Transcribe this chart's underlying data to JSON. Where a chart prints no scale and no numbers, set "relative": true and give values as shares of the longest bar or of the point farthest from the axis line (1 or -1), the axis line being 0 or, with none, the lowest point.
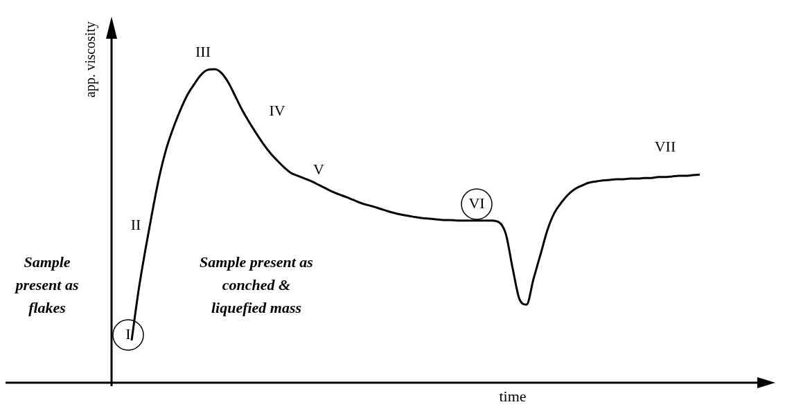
{
  "chart_data": {
    "type": "line",
    "relative": true,
    "xlabel": "time",
    "ylabel": "app. viscosity",
    "annotations": [
      "I",
      "II",
      "III",
      "IV",
      "V",
      "VI",
      "VII",
      "Sample\npresent as\nflakes",
      "Sample present as\nconched &\nliquefied mass"
    ],
    "categories": [
      null,
      null,
      null,
      null,
      null,
      null,
      null,
      null,
      null,
      null,
      null,
      null,
      null,
      null,
      null,
      null,
      null,
      null,
      null,
      null,
      null,
      null,
      null,
      null,
      null,
      null,
      null,
      null,
      null,
      null,
      null,
      null,
      null,
      null,
      null,
      null,
      null,
      null,
      null,
      null,
      null,
      null,
      null,
      null,
      null,
      null,
      null,
      null,
      null,
      null,
      null,
      null,
      null,
      null,
      null,
      null,
      null,
      null,
      null,
      null,
      null,
      null,
      null,
      null,
      null,
      null,
      null,
      null,
      null,
      null,
      null,
      null,
      null,
      null,
      null,
      null,
      null,
      null,
      null,
      null,
      null,
      null,
      null
    ],
    "series": [
      {
        "color": "#000000",
        "values": [
          0.135,
          0.294,
          0.426,
          0.547,
          0.658,
          0.746,
          0.812,
          0.868,
          0.916,
          0.951,
          0.982,
          0.998,
          1.0,
          0.987,
          0.956,
          0.912,
          0.868,
          0.83,
          0.795,
          0.762,
          0.733,
          0.709,
          0.687,
          0.669,
          0.66,
          0.651,
          0.642,
          0.631,
          0.62,
          0.609,
          0.6,
          0.592,
          0.583,
          0.574,
          0.567,
          0.561,
          0.554,
          0.547,
          0.541,
          0.536,
          0.532,
          0.528,
          0.525,
          0.523,
          0.521,
          0.519,
          0.519,
          0.517,
          0.517,
          0.517,
          0.517,
          0.517,
          0.517,
          0.512,
          0.475,
          0.364,
          0.265,
          0.249,
          0.331,
          0.408,
          0.486,
          0.541,
          0.574,
          0.6,
          0.618,
          0.629,
          0.638,
          0.642,
          0.645,
          0.647,
          0.649,
          0.649,
          0.651,
          0.651,
          0.653,
          0.653,
          0.656,
          0.656,
          0.658,
          0.66,
          0.66,
          0.662,
          0.664
        ]
      }
    ]
  }
}
